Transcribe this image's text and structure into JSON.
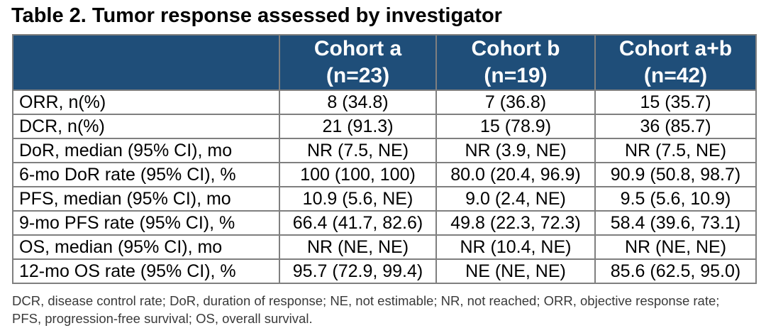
{
  "title": "Table 2. Tumor response assessed by investigator",
  "colors": {
    "header_bg": "#1F4E79",
    "header_text": "#FFFFFF",
    "grid_border": "#7F7F7F",
    "body_text": "#000000",
    "footnote_text": "#3A3A3A",
    "page_bg": "#FFFFFF"
  },
  "chart_data": {
    "type": "table",
    "title": "Table 2. Tumor response assessed by investigator",
    "header": [
      {
        "line1": "Cohort a",
        "line2": "(n=23)"
      },
      {
        "line1": "Cohort b",
        "line2": "(n=19)"
      },
      {
        "line1": "Cohort a+b",
        "line2": "(n=42)"
      }
    ],
    "rows": [
      {
        "label": "ORR, n(%)",
        "values": [
          "8 (34.8)",
          "7 (36.8)",
          "15 (35.7)"
        ]
      },
      {
        "label": "DCR, n(%)",
        "values": [
          "21 (91.3)",
          "15 (78.9)",
          "36 (85.7)"
        ]
      },
      {
        "label": "DoR, median (95% CI), mo",
        "values": [
          "NR (7.5, NE)",
          "NR (3.9, NE)",
          "NR (7.5, NE)"
        ]
      },
      {
        "label": "6-mo DoR rate (95% CI), %",
        "values": [
          "100 (100, 100)",
          "80.0 (20.4, 96.9)",
          "90.9 (50.8, 98.7)"
        ]
      },
      {
        "label": "PFS, median (95% CI), mo",
        "values": [
          "10.9 (5.6, NE)",
          "9.0 (2.4, NE)",
          "9.5 (5.6, 10.9)"
        ]
      },
      {
        "label": "9-mo PFS rate (95% CI), %",
        "values": [
          "66.4 (41.7, 82.6)",
          "49.8 (22.3, 72.3)",
          "58.4 (39.6, 73.1)"
        ]
      },
      {
        "label": "OS, median (95% CI), mo",
        "values": [
          "NR (NE, NE)",
          "NR (10.4, NE)",
          "NR (NE, NE)"
        ]
      },
      {
        "label": "12-mo OS rate (95% CI), %",
        "values": [
          "95.7 (72.9, 99.4)",
          "NE (NE, NE)",
          "85.6 (62.5, 95.0)"
        ]
      }
    ]
  },
  "footnote": {
    "line1": "DCR, disease control rate; DoR, duration of response; NE, not estimable; NR, not reached; ORR, objective response rate;",
    "line2": "PFS, progression-free survival; OS, overall survival."
  }
}
